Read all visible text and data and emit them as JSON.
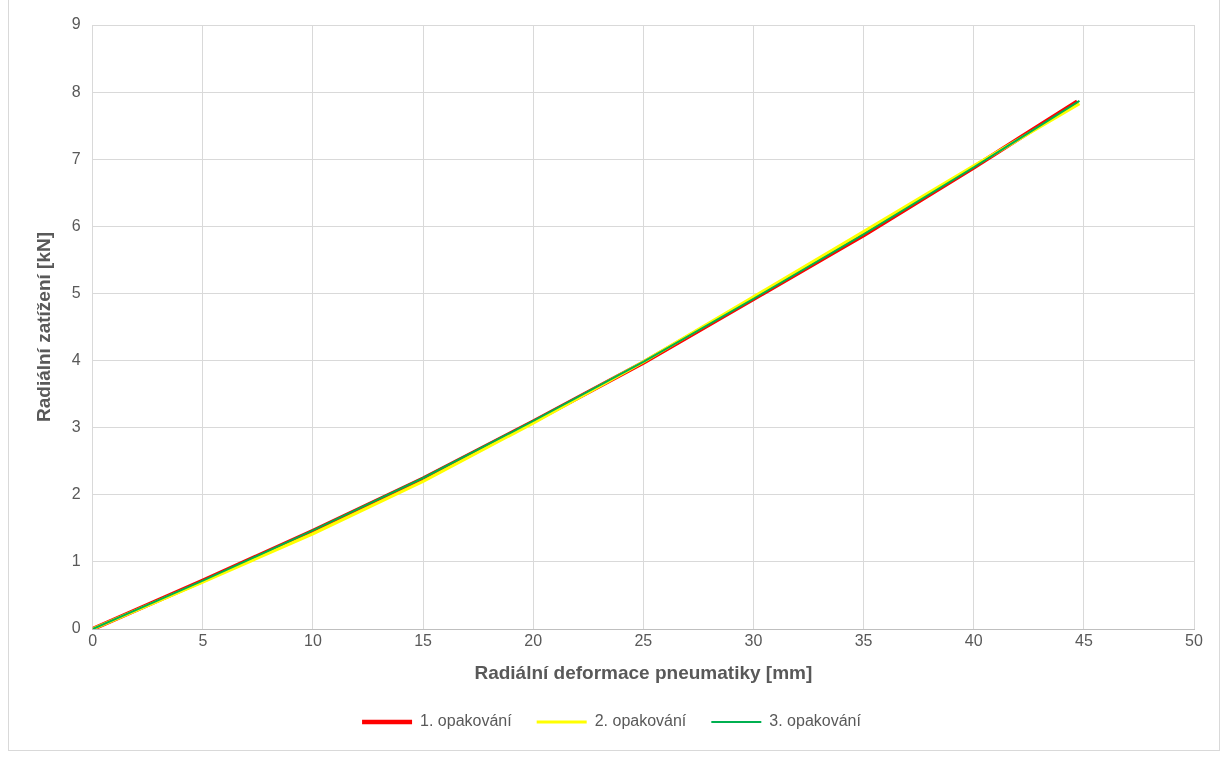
{
  "chart_data": {
    "type": "line",
    "xlabel": "Radiální deformace pneumatiky [mm]",
    "ylabel": "Radiální zatížení [kN]",
    "xlim": [
      0,
      50
    ],
    "xticks": [
      0,
      5,
      10,
      15,
      20,
      25,
      30,
      35,
      40,
      45,
      50
    ],
    "ylim": [
      0,
      9
    ],
    "yticks": [
      0,
      1,
      2,
      3,
      4,
      5,
      6,
      7,
      8,
      9
    ],
    "grid": true,
    "legend": "bottom",
    "marker": "none",
    "line_style": "solid",
    "series": [
      {
        "name": "1. opakování",
        "color": "#ff0000",
        "x": [
          0,
          5,
          10,
          15,
          20,
          25,
          30,
          35,
          40,
          44.7
        ],
        "values": [
          0,
          0.72,
          1.46,
          2.24,
          3.09,
          3.97,
          4.92,
          5.87,
          6.88,
          7.86
        ]
      },
      {
        "name": "2. opakování",
        "color": "#ffff00",
        "x": [
          0,
          5,
          10,
          15,
          20,
          25,
          30,
          35,
          40,
          44.8
        ],
        "values": [
          0,
          0.7,
          1.42,
          2.2,
          3.07,
          3.98,
          4.95,
          5.92,
          6.9,
          7.83
        ]
      },
      {
        "name": "3. opakování",
        "color": "#00b050",
        "x": [
          0,
          5,
          10,
          15,
          20,
          25,
          30,
          35,
          40,
          44.8
        ],
        "values": [
          0,
          0.72,
          1.47,
          2.25,
          3.1,
          3.98,
          4.92,
          5.88,
          6.88,
          7.87
        ]
      }
    ]
  }
}
